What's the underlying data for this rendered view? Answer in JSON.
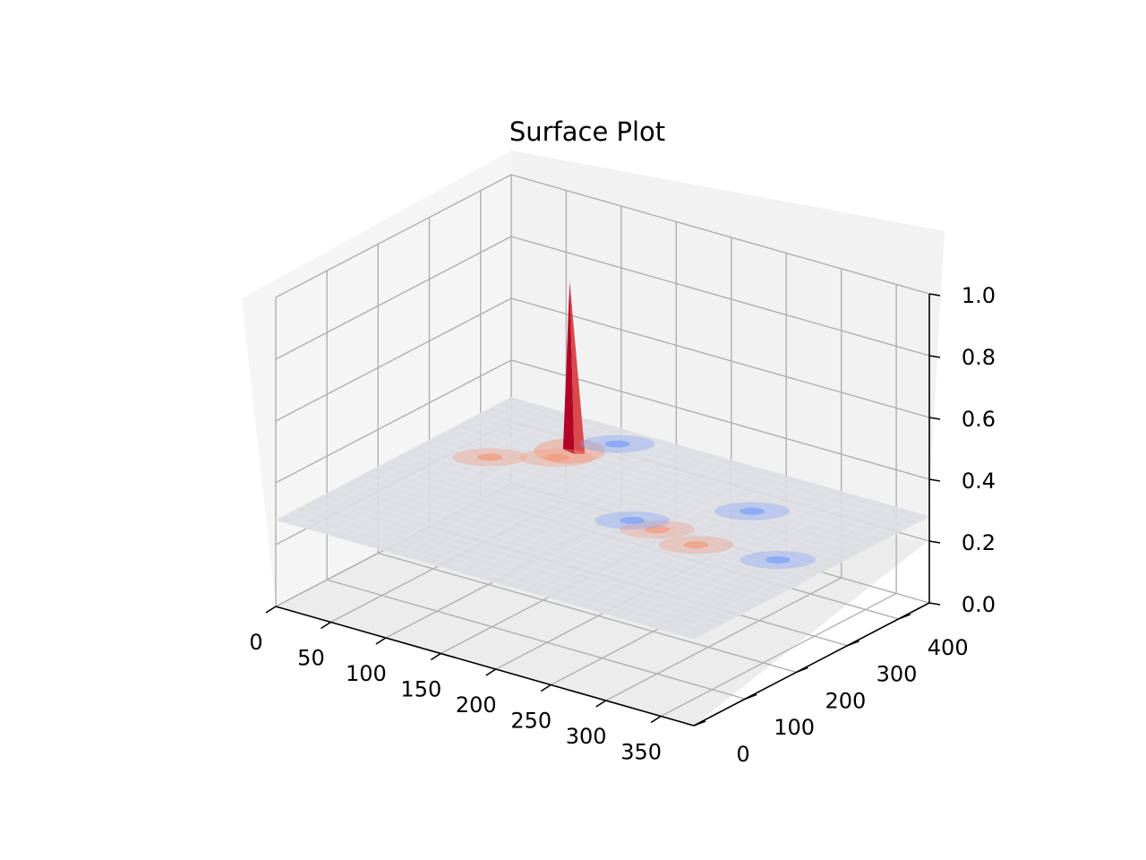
{
  "chart_data": {
    "type": "surface",
    "title": "Surface Plot",
    "colormap": "coolwarm",
    "colors": {
      "pane": "#f2f2f2",
      "grid": "#b0b0b0",
      "axis": "#000000",
      "base_surface": "#dcdde2",
      "peak_red": "#b40426",
      "warm": "#f4987a",
      "cool": "#7b9ff9"
    },
    "x_axis": {
      "label": "",
      "ticks": [
        "0",
        "50",
        "100",
        "150",
        "200",
        "250",
        "300",
        "350"
      ],
      "range": [
        0,
        380
      ]
    },
    "y_axis": {
      "label": "",
      "ticks": [
        "0",
        "100",
        "200",
        "300",
        "400"
      ],
      "range": [
        0,
        460
      ]
    },
    "z_axis": {
      "label": "",
      "ticks": [
        "0.0",
        "0.2",
        "0.4",
        "0.6",
        "0.8",
        "1.0"
      ],
      "range": [
        0.0,
        1.0
      ]
    },
    "grid": true,
    "baseline_z": 0.28,
    "features": [
      {
        "kind": "peak",
        "x": 95,
        "y": 370,
        "z": 0.83,
        "tone": "red"
      },
      {
        "kind": "warm",
        "x": 95,
        "y": 345,
        "z": 0.35
      },
      {
        "kind": "warm",
        "x": 55,
        "y": 300,
        "z": 0.32
      },
      {
        "kind": "warm",
        "x": 235,
        "y": 240,
        "z": 0.32
      },
      {
        "kind": "warm",
        "x": 275,
        "y": 230,
        "z": 0.31
      },
      {
        "kind": "cool",
        "x": 115,
        "y": 420,
        "z": 0.25
      },
      {
        "kind": "cool",
        "x": 210,
        "y": 245,
        "z": 0.25
      },
      {
        "kind": "cool",
        "x": 270,
        "y": 350,
        "z": 0.25
      },
      {
        "kind": "cool",
        "x": 340,
        "y": 250,
        "z": 0.26
      }
    ]
  }
}
